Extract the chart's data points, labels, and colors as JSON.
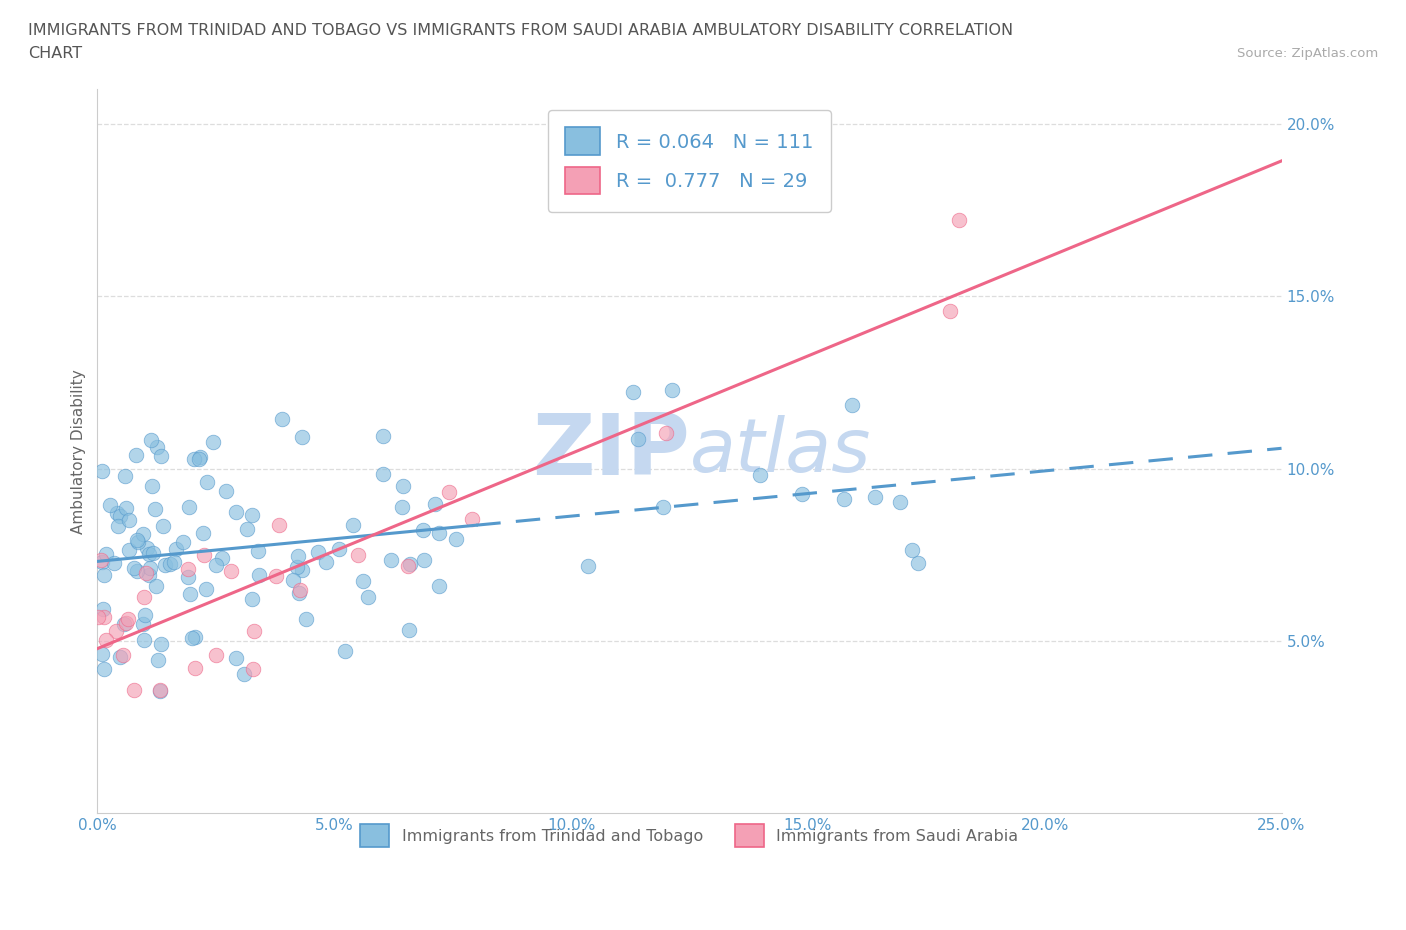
{
  "title_line1": "IMMIGRANTS FROM TRINIDAD AND TOBAGO VS IMMIGRANTS FROM SAUDI ARABIA AMBULATORY DISABILITY CORRELATION",
  "title_line2": "CHART",
  "source": "Source: ZipAtlas.com",
  "ylabel": "Ambulatory Disability",
  "xlim": [
    0.0,
    0.25
  ],
  "ylim": [
    0.0,
    0.21
  ],
  "xticks": [
    0.0,
    0.05,
    0.1,
    0.15,
    0.2,
    0.25
  ],
  "yticks": [
    0.05,
    0.1,
    0.15,
    0.2
  ],
  "xticklabels": [
    "0.0%",
    "5.0%",
    "10.0%",
    "15.0%",
    "20.0%",
    "25.0%"
  ],
  "yticklabels": [
    "5.0%",
    "10.0%",
    "15.0%",
    "20.0%"
  ],
  "series1_color": "#89bfdf",
  "series2_color": "#f4a0b5",
  "trendline1_color": "#5599cc",
  "trendline2_color": "#ee6688",
  "R1": 0.064,
  "N1": 111,
  "R2": 0.777,
  "N2": 29,
  "label1": "Immigrants from Trinidad and Tobago",
  "label2": "Immigrants from Saudi Arabia",
  "watermark_zip": "ZIP",
  "watermark_atlas": "atlas",
  "watermark_color": "#c5d8f0",
  "background_color": "#ffffff",
  "grid_color": "#dddddd",
  "title_color": "#555555",
  "title_fontsize": 11.5,
  "axis_label_fontsize": 11,
  "tick_fontsize": 11,
  "tick_color": "#5599cc",
  "source_color": "#aaaaaa"
}
